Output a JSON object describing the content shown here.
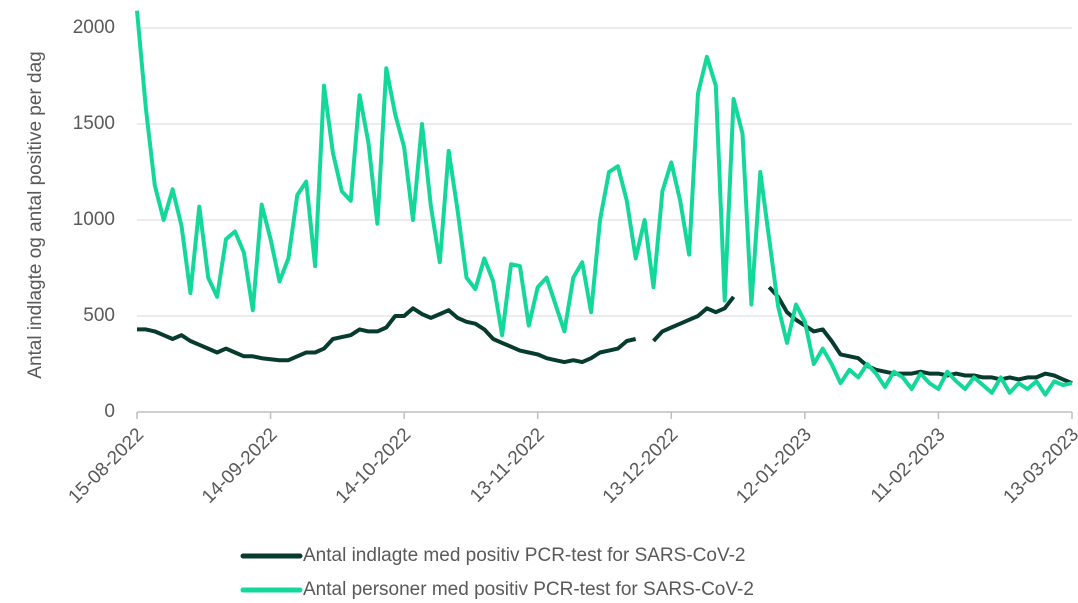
{
  "chart_data": {
    "type": "line",
    "y_label": "Antal indlagte og antal positive per dag",
    "x": [
      "15-08-2022",
      "17-08-2022",
      "19-08-2022",
      "21-08-2022",
      "23-08-2022",
      "25-08-2022",
      "27-08-2022",
      "29-08-2022",
      "31-08-2022",
      "02-09-2022",
      "04-09-2022",
      "06-09-2022",
      "08-09-2022",
      "10-09-2022",
      "12-09-2022",
      "14-09-2022",
      "16-09-2022",
      "18-09-2022",
      "20-09-2022",
      "22-09-2022",
      "24-09-2022",
      "26-09-2022",
      "28-09-2022",
      "30-09-2022",
      "02-10-2022",
      "04-10-2022",
      "06-10-2022",
      "08-10-2022",
      "10-10-2022",
      "12-10-2022",
      "14-10-2022",
      "16-10-2022",
      "18-10-2022",
      "20-10-2022",
      "22-10-2022",
      "24-10-2022",
      "26-10-2022",
      "28-10-2022",
      "30-10-2022",
      "01-11-2022",
      "03-11-2022",
      "05-11-2022",
      "07-11-2022",
      "09-11-2022",
      "11-11-2022",
      "13-11-2022",
      "15-11-2022",
      "17-11-2022",
      "19-11-2022",
      "21-11-2022",
      "23-11-2022",
      "25-11-2022",
      "27-11-2022",
      "29-11-2022",
      "01-12-2022",
      "03-12-2022",
      "05-12-2022",
      "07-12-2022",
      "09-12-2022",
      "11-12-2022",
      "13-12-2022",
      "15-12-2022",
      "17-12-2022",
      "19-12-2022",
      "21-12-2022",
      "23-12-2022",
      "25-12-2022",
      "27-12-2022",
      "29-12-2022",
      "31-12-2022",
      "02-01-2023",
      "04-01-2023",
      "06-01-2023",
      "08-01-2023",
      "10-01-2023",
      "12-01-2023",
      "14-01-2023",
      "16-01-2023",
      "18-01-2023",
      "20-01-2023",
      "22-01-2023",
      "24-01-2023",
      "26-01-2023",
      "28-01-2023",
      "30-01-2023",
      "01-02-2023",
      "03-02-2023",
      "05-02-2023",
      "07-02-2023",
      "09-02-2023",
      "11-02-2023",
      "13-02-2023",
      "15-02-2023",
      "17-02-2023",
      "19-02-2023",
      "21-02-2023",
      "23-02-2023",
      "25-02-2023",
      "27-02-2023",
      "01-03-2023",
      "03-03-2023",
      "05-03-2023",
      "07-03-2023",
      "09-03-2023",
      "11-03-2023",
      "13-03-2023"
    ],
    "series": [
      {
        "name": "Antal indlagte med positiv PCR-test for SARS-CoV-2",
        "color": "#073b2e",
        "values": [
          430,
          430,
          420,
          400,
          380,
          400,
          370,
          350,
          330,
          310,
          330,
          310,
          290,
          290,
          280,
          275,
          270,
          270,
          290,
          310,
          310,
          330,
          380,
          390,
          400,
          430,
          420,
          420,
          440,
          500,
          500,
          540,
          510,
          490,
          510,
          530,
          490,
          470,
          460,
          430,
          380,
          360,
          340,
          320,
          310,
          300,
          280,
          270,
          260,
          270,
          260,
          280,
          310,
          320,
          330,
          370,
          380,
          null,
          370,
          420,
          440,
          460,
          480,
          500,
          540,
          520,
          540,
          600,
          null,
          null,
          null,
          650,
          600,
          520,
          480,
          450,
          420,
          430,
          370,
          300,
          290,
          280,
          240,
          220,
          210,
          200,
          200,
          200,
          210,
          200,
          200,
          190,
          200,
          190,
          190,
          180,
          180,
          170,
          180,
          170,
          180,
          180,
          200,
          190,
          170,
          150
        ]
      },
      {
        "name": "Antal personer med positiv PCR-test for SARS-CoV-2",
        "color": "#14d89a",
        "values": [
          2090,
          1580,
          1180,
          1000,
          1160,
          970,
          620,
          1070,
          700,
          600,
          900,
          940,
          830,
          530,
          1080,
          900,
          680,
          800,
          1130,
          1200,
          760,
          1700,
          1350,
          1150,
          1100,
          1650,
          1400,
          980,
          1790,
          1550,
          1380,
          1000,
          1500,
          1070,
          780,
          1360,
          1050,
          700,
          640,
          800,
          680,
          400,
          770,
          760,
          450,
          650,
          700,
          560,
          420,
          700,
          780,
          520,
          1000,
          1250,
          1280,
          1100,
          800,
          1000,
          650,
          1150,
          1300,
          1100,
          820,
          1660,
          1850,
          1700,
          580,
          1630,
          1450,
          560,
          1250,
          900,
          550,
          360,
          560,
          470,
          250,
          330,
          250,
          150,
          220,
          180,
          250,
          200,
          130,
          210,
          180,
          120,
          200,
          150,
          120,
          210,
          160,
          120,
          180,
          140,
          100,
          180,
          100,
          150,
          120,
          160,
          90,
          160,
          140,
          150
        ]
      }
    ],
    "xlim": [
      "15-08-2022",
      "13-03-2023"
    ],
    "xticks": [
      "15-08-2022",
      "14-09-2022",
      "14-10-2022",
      "13-11-2022",
      "13-12-2022",
      "12-01-2023",
      "11-02-2023",
      "13-03-2023"
    ],
    "ylim": [
      0,
      2000
    ],
    "yticks": [
      0,
      500,
      1000,
      1500,
      2000
    ],
    "grid": true,
    "legend": "bottom"
  }
}
